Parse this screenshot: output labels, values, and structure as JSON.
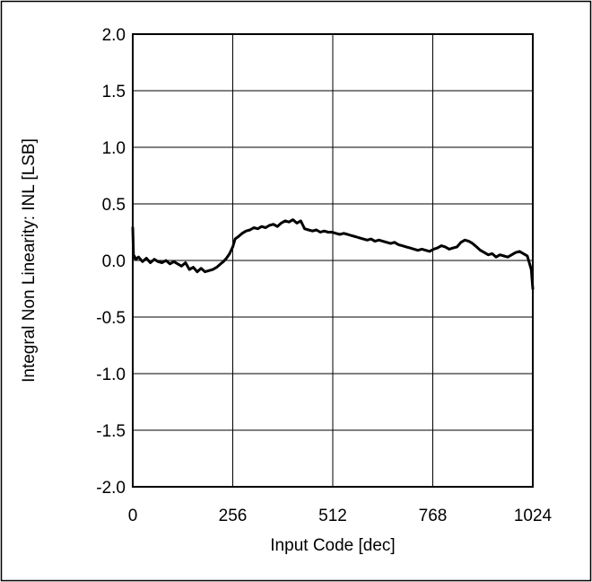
{
  "chart_data": {
    "type": "line",
    "title": "",
    "xlabel": "Input Code [dec]",
    "ylabel": "Integral Non Linearity: INL [LSB]",
    "xlim": [
      0,
      1024
    ],
    "ylim": [
      -2.0,
      2.0
    ],
    "x_ticks": [
      0,
      256,
      512,
      768,
      1024
    ],
    "x_tick_labels": [
      "0",
      "256",
      "512",
      "768",
      "1024"
    ],
    "y_ticks": [
      2.0,
      1.5,
      1.0,
      0.5,
      0.0,
      -0.5,
      -1.0,
      -1.5,
      -2.0
    ],
    "y_tick_labels": [
      "2.0",
      "1.5",
      "1.0",
      "0.5",
      "0.0",
      "-0.5",
      "-1.0",
      "-1.5",
      "-2.0"
    ],
    "grid": true,
    "line_color": "#000000",
    "series": [
      {
        "x": [
          0,
          2,
          4,
          8,
          15,
          25,
          35,
          45,
          55,
          65,
          75,
          85,
          95,
          105,
          115,
          125,
          135,
          145,
          155,
          165,
          175,
          185,
          195,
          205,
          215,
          225,
          232,
          240,
          248,
          256,
          262,
          270,
          280,
          290,
          300,
          310,
          320,
          330,
          340,
          350,
          360,
          370,
          380,
          390,
          400,
          410,
          420,
          430,
          440,
          450,
          460,
          470,
          480,
          490,
          500,
          510,
          520,
          530,
          540,
          550,
          560,
          570,
          580,
          590,
          600,
          610,
          620,
          630,
          640,
          650,
          660,
          670,
          680,
          690,
          700,
          710,
          720,
          730,
          740,
          750,
          760,
          770,
          780,
          790,
          800,
          810,
          820,
          830,
          840,
          850,
          860,
          870,
          880,
          890,
          900,
          910,
          920,
          930,
          940,
          950,
          960,
          970,
          980,
          990,
          1000,
          1005,
          1010,
          1015,
          1020,
          1024
        ],
        "y": [
          0.29,
          0.02,
          0.04,
          0.01,
          0.03,
          -0.01,
          0.02,
          -0.02,
          0.01,
          -0.01,
          -0.02,
          0.0,
          -0.03,
          -0.01,
          -0.03,
          -0.05,
          -0.02,
          -0.08,
          -0.06,
          -0.1,
          -0.07,
          -0.1,
          -0.09,
          -0.08,
          -0.06,
          -0.03,
          -0.01,
          0.02,
          0.06,
          0.12,
          0.19,
          0.21,
          0.24,
          0.26,
          0.27,
          0.29,
          0.28,
          0.3,
          0.29,
          0.31,
          0.32,
          0.3,
          0.33,
          0.35,
          0.34,
          0.36,
          0.33,
          0.35,
          0.28,
          0.27,
          0.26,
          0.27,
          0.25,
          0.26,
          0.25,
          0.25,
          0.24,
          0.23,
          0.24,
          0.23,
          0.22,
          0.21,
          0.2,
          0.19,
          0.18,
          0.19,
          0.17,
          0.18,
          0.17,
          0.16,
          0.15,
          0.16,
          0.14,
          0.13,
          0.12,
          0.11,
          0.1,
          0.09,
          0.1,
          0.09,
          0.08,
          0.1,
          0.11,
          0.13,
          0.12,
          0.1,
          0.11,
          0.12,
          0.16,
          0.18,
          0.17,
          0.15,
          0.12,
          0.09,
          0.07,
          0.05,
          0.06,
          0.03,
          0.05,
          0.04,
          0.03,
          0.05,
          0.07,
          0.08,
          0.06,
          0.05,
          0.04,
          -0.02,
          -0.08,
          -0.25
        ]
      }
    ]
  }
}
